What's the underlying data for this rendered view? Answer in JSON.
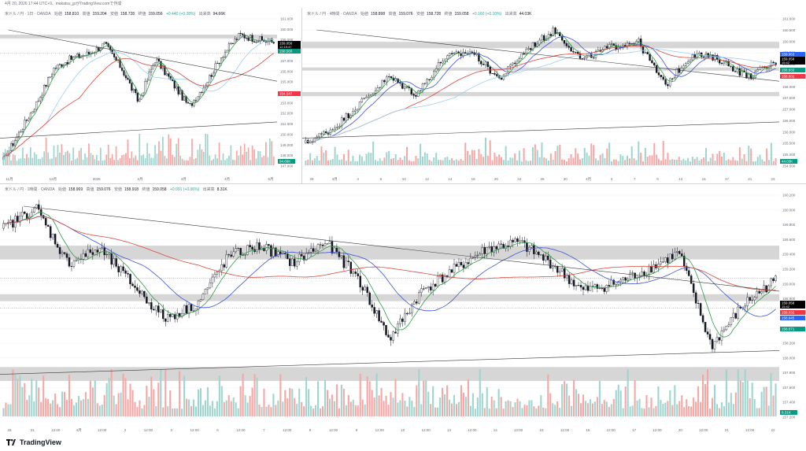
{
  "header": {
    "text": "4月 20, 2026 17:44 UTC+9、inakatsu_jpがTradingView.comで作成"
  },
  "footer": {
    "logo_text": "TradingView"
  },
  "colors": {
    "up": "#26a69a",
    "down": "#ef5350",
    "vol_up": "#9fd5cf",
    "vol_down": "#f5a7a5",
    "zone": "#cfcfcf",
    "trend": "#3a3a3a",
    "ma_green": "#2e9d45",
    "ma_blue": "#3f51d8",
    "ma_red": "#d9483b",
    "ma_lightblue": "#9ecff0",
    "price_black": "#000000",
    "price_red": "#f23645",
    "price_green": "#089981",
    "price_blue": "#2962ff",
    "price_purple": "#9c27b0"
  },
  "panels": [
    {
      "id": "daily",
      "legend": {
        "symbol": "米ドル / 円 · 1日 · OANDA",
        "o_label": "始値",
        "o": "158.810",
        "h_label": "高値",
        "h": "159.204",
        "l_label": "安値",
        "l": "158.728",
        "c_label": "終値",
        "c": "159.056",
        "chg": "+0.440 (+0.28%)",
        "vol_label": "出来高",
        "vol": "94.66K"
      },
      "x_labels": [
        "11月",
        "12月",
        "2026",
        "2月",
        "3月",
        "4月",
        "5月"
      ],
      "y_labels": [
        "161.000",
        "160.000",
        "159.000",
        "158.000",
        "157.000",
        "156.000",
        "155.000",
        "154.000",
        "153.000",
        "152.000",
        "151.000",
        "150.000",
        "149.000",
        "148.000",
        "147.000"
      ],
      "price_tags": [
        {
          "text": "159.056",
          "sub": "12:15:47",
          "kind": "black"
        },
        {
          "text": "158.580",
          "kind": "green"
        },
        {
          "text": "154.547",
          "kind": "red"
        }
      ],
      "vol_tag": "94.66K",
      "chart_data": {
        "type": "candlestick",
        "y_range": [
          146.5,
          161.8
        ],
        "start": 147.0,
        "end": 159.1,
        "waypoints": [
          147.0,
          150.0,
          153.0,
          156.5,
          157.5,
          158.0,
          159.0,
          156.5,
          153.0,
          157.5,
          155.0,
          152.5,
          155.0,
          158.0,
          160.0,
          159.5,
          159.2
        ],
        "zones": [
          [
            159.6,
            160.0
          ]
        ],
        "hlines": [
          158.05
        ]
      }
    },
    {
      "id": "h4",
      "legend": {
        "symbol": "米ドル / 円 · 4時間 · OANDA",
        "o_label": "始値",
        "o": "158.898",
        "h_label": "高値",
        "h": "159.076",
        "l_label": "安値",
        "l": "158.728",
        "c_label": "終値",
        "c": "159.058",
        "chg": "+0.160 (+0.10%)",
        "vol_label": "出来高",
        "vol": "44.03K"
      },
      "x_labels": [
        "26",
        "3月",
        "4",
        "6",
        "10",
        "12",
        "14",
        "18",
        "20",
        "24",
        "26",
        "30",
        "4月",
        "3",
        "7",
        "9",
        "13",
        "15",
        "17",
        "21",
        "23"
      ],
      "y_labels": [
        "161.000",
        "160.500",
        "160.000",
        "159.500",
        "159.000",
        "158.500",
        "158.000",
        "157.500",
        "157.000",
        "156.500",
        "156.000",
        "155.500",
        "155.000",
        "154.500"
      ],
      "price_tags": [
        {
          "text": "159.063",
          "kind": "blue"
        },
        {
          "text": "159.058",
          "sub": "15:42",
          "kind": "black"
        },
        {
          "text": "158.932",
          "kind": "green"
        },
        {
          "text": "158.601",
          "kind": "red"
        }
      ],
      "vol_tag": "44.03K",
      "chart_data": {
        "type": "candlestick",
        "y_range": [
          154.3,
          161.2
        ],
        "start": 155.3,
        "end": 159.1,
        "waypoints": [
          155.3,
          156.0,
          157.2,
          158.4,
          157.6,
          159.3,
          159.6,
          158.3,
          159.7,
          160.6,
          159.2,
          159.8,
          160.1,
          158.0,
          159.5,
          159.2,
          158.4,
          159.1
        ],
        "zones": [
          [
            159.75,
            160.05
          ],
          [
            158.7,
            158.85
          ],
          [
            157.5,
            157.7
          ]
        ],
        "hlines": []
      }
    },
    {
      "id": "h1",
      "legend": {
        "symbol": "米ドル / 円 · 1時間 · OANDA",
        "o_label": "始値",
        "o": "158.969",
        "h_label": "高値",
        "h": "159.076",
        "l_label": "安値",
        "l": "158.918",
        "c_label": "終値",
        "c": "159.058",
        "chg": "+0.091 (+0.06%)",
        "vol_label": "出来高",
        "vol": "8.31K"
      },
      "x_labels": [
        "26",
        "31",
        "12:00",
        "4月",
        "12:00",
        "2",
        "12:00",
        "3",
        "12:00",
        "6",
        "12:00",
        "7",
        "12:00",
        "8",
        "12:00",
        "9",
        "12:00",
        "10",
        "12:00",
        "13",
        "12:00",
        "14",
        "12:00",
        "15",
        "12:00",
        "16",
        "12:00",
        "17",
        "12:00",
        "20",
        "12:00",
        "21",
        "12:00",
        "22"
      ],
      "y_labels": [
        "160.200",
        "160.000",
        "159.800",
        "159.600",
        "159.400",
        "159.200",
        "159.000",
        "158.800",
        "158.600",
        "158.400",
        "158.200",
        "158.000",
        "157.800",
        "157.600",
        "157.400",
        "157.200"
      ],
      "price_tags": [
        {
          "text": "159.058",
          "sub": "15:42",
          "kind": "black"
        },
        {
          "text": "159.032",
          "kind": "red"
        },
        {
          "text": "158.945",
          "kind": "blue"
        },
        {
          "text": "158.671",
          "kind": "green"
        }
      ],
      "vol_tag": "8.31K",
      "chart_data": {
        "type": "candlestick",
        "y_range": [
          157.1,
          160.3
        ],
        "start": 159.8,
        "end": 159.06,
        "waypoints": [
          159.8,
          160.1,
          159.3,
          159.5,
          159.0,
          158.5,
          158.7,
          159.4,
          159.55,
          159.3,
          159.6,
          159.1,
          158.2,
          158.9,
          159.2,
          159.5,
          159.6,
          159.3,
          158.9,
          159.0,
          159.2,
          159.45,
          158.1,
          158.7,
          159.06
        ],
        "zones": [
          [
            159.35,
            159.55
          ],
          [
            158.75,
            158.85
          ],
          [
            157.6,
            157.8
          ]
        ],
        "hlines": [
          159.08,
          158.65
        ]
      }
    }
  ]
}
